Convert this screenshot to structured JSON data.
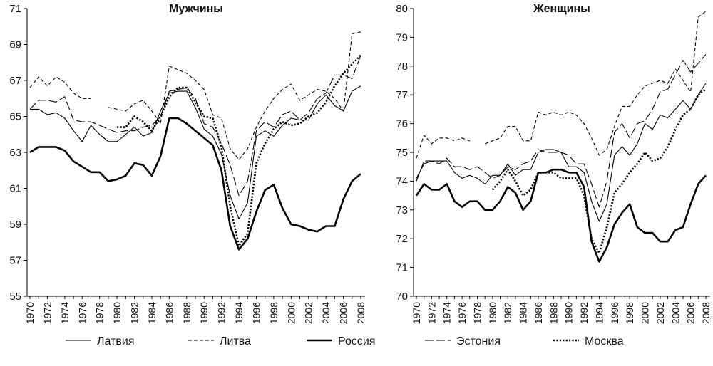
{
  "legend": [
    {
      "name": "Латвия",
      "style": "latvia"
    },
    {
      "name": "Литва",
      "style": "lithuania"
    },
    {
      "name": "Россия",
      "style": "russia"
    },
    {
      "name": "Эстония",
      "style": "estonia"
    },
    {
      "name": "Москва",
      "style": "moscow"
    }
  ],
  "chart_data": [
    {
      "type": "line",
      "title": "Мужчины",
      "xlabel": "",
      "ylabel": "",
      "ylim": [
        55,
        71
      ],
      "yticks": [
        55,
        57,
        59,
        61,
        63,
        65,
        67,
        69,
        71
      ],
      "xlim": [
        1970,
        2008
      ],
      "xticks": [
        1970,
        1972,
        1974,
        1976,
        1978,
        1980,
        1982,
        1984,
        1986,
        1988,
        1990,
        1992,
        1994,
        1996,
        1998,
        2000,
        2002,
        2004,
        2006,
        2008
      ],
      "grid": false,
      "series": [
        {
          "name": "Латвия",
          "style": "latvia",
          "x": [
            1970,
            1971,
            1972,
            1973,
            1974,
            1975,
            1976,
            1977,
            1978,
            1979,
            1980,
            1981,
            1982,
            1983,
            1984,
            1985,
            1986,
            1987,
            1988,
            1989,
            1990,
            1991,
            1992,
            1993,
            1994,
            1995,
            1996,
            1997,
            1998,
            1999,
            2000,
            2001,
            2002,
            2003,
            2004,
            2005,
            2006,
            2007,
            2008
          ],
          "values": [
            65.4,
            65.4,
            65.1,
            65.2,
            64.9,
            64.2,
            63.6,
            64.5,
            64.0,
            63.6,
            63.6,
            64.0,
            64.4,
            63.9,
            64.1,
            65.3,
            66.3,
            66.4,
            66.4,
            65.5,
            64.3,
            63.9,
            62.9,
            60.6,
            59.3,
            60.2,
            63.9,
            64.2,
            63.9,
            64.5,
            64.9,
            64.8,
            64.8,
            65.7,
            66.2,
            65.6,
            65.3,
            66.4,
            66.7
          ]
        },
        {
          "name": "Литва",
          "style": "lithuania",
          "x": [
            1970,
            1971,
            1972,
            1973,
            1974,
            1975,
            1976,
            1977,
            1978,
            1979,
            1980,
            1981,
            1982,
            1983,
            1984,
            1985,
            1986,
            1987,
            1988,
            1989,
            1990,
            1991,
            1992,
            1993,
            1994,
            1995,
            1996,
            1997,
            1998,
            1999,
            2000,
            2001,
            2002,
            2003,
            2004,
            2005,
            2006,
            2007,
            2008
          ],
          "values": [
            66.6,
            67.2,
            66.7,
            67.2,
            66.9,
            66.3,
            66.0,
            66.0,
            null,
            65.5,
            65.4,
            65.3,
            65.7,
            65.9,
            65.3,
            64.6,
            67.8,
            67.6,
            67.4,
            67.0,
            66.5,
            65.1,
            64.9,
            63.2,
            62.6,
            63.2,
            64.4,
            65.3,
            66.0,
            66.5,
            66.8,
            65.9,
            66.2,
            66.5,
            66.4,
            66.0,
            65.3,
            69.6,
            69.7
          ]
        },
        {
          "name": "Россия",
          "style": "russia",
          "x": [
            1970,
            1971,
            1972,
            1973,
            1974,
            1975,
            1976,
            1977,
            1978,
            1979,
            1980,
            1981,
            1982,
            1983,
            1984,
            1985,
            1986,
            1987,
            1988,
            1989,
            1990,
            1991,
            1992,
            1993,
            1994,
            1995,
            1996,
            1997,
            1998,
            1999,
            2000,
            2001,
            2002,
            2003,
            2004,
            2005,
            2006,
            2007,
            2008
          ],
          "values": [
            63.0,
            63.3,
            63.3,
            63.3,
            63.1,
            62.5,
            62.2,
            61.9,
            61.9,
            61.4,
            61.5,
            61.7,
            62.4,
            62.3,
            61.7,
            62.8,
            64.9,
            64.9,
            64.6,
            64.2,
            63.8,
            63.4,
            62.0,
            58.9,
            57.6,
            58.2,
            59.7,
            60.9,
            61.2,
            59.9,
            59.0,
            58.9,
            58.7,
            58.6,
            58.9,
            58.9,
            60.4,
            61.4,
            61.8
          ]
        },
        {
          "name": "Эстония",
          "style": "estonia",
          "x": [
            1970,
            1971,
            1972,
            1973,
            1974,
            1975,
            1976,
            1977,
            1978,
            1979,
            1980,
            1981,
            1982,
            1983,
            1984,
            1985,
            1986,
            1987,
            1988,
            1989,
            1990,
            1991,
            1992,
            1993,
            1994,
            1995,
            1996,
            1997,
            1998,
            1999,
            2000,
            2001,
            2002,
            2003,
            2004,
            2005,
            2006,
            2007,
            2008
          ],
          "values": [
            65.4,
            65.9,
            65.9,
            65.8,
            66.1,
            64.8,
            64.7,
            64.7,
            64.5,
            64.3,
            64.1,
            64.2,
            64.2,
            64.4,
            64.5,
            65.0,
            66.4,
            66.5,
            66.6,
            66.0,
            64.6,
            64.4,
            63.5,
            62.3,
            60.6,
            61.4,
            64.2,
            64.7,
            64.4,
            65.1,
            65.3,
            64.8,
            65.2,
            66.0,
            66.3,
            67.3,
            67.3,
            67.1,
            68.4
          ]
        },
        {
          "name": "Москва",
          "style": "moscow",
          "x": [
            1980,
            1981,
            1982,
            1983,
            1984,
            1985,
            1986,
            1987,
            1988,
            1989,
            1990,
            1991,
            1992,
            1993,
            1994,
            1995,
            1996,
            1997,
            1998,
            1999,
            2000,
            2001,
            2002,
            2003,
            2004,
            2005,
            2006,
            2007,
            2008
          ],
          "values": [
            64.4,
            64.4,
            65.0,
            64.7,
            64.2,
            65.0,
            66.1,
            66.6,
            66.6,
            65.8,
            65.0,
            64.9,
            63.3,
            60.0,
            57.8,
            58.5,
            62.4,
            63.5,
            64.3,
            64.7,
            64.5,
            64.6,
            65.0,
            65.2,
            65.8,
            66.7,
            67.4,
            67.9,
            68.4
          ]
        }
      ]
    },
    {
      "type": "line",
      "title": "Женщины",
      "xlabel": "",
      "ylabel": "",
      "ylim": [
        70,
        80
      ],
      "yticks": [
        70,
        71,
        72,
        73,
        74,
        75,
        76,
        77,
        78,
        79,
        80
      ],
      "xlim": [
        1970,
        2008
      ],
      "xticks": [
        1970,
        1972,
        1974,
        1976,
        1978,
        1980,
        1982,
        1984,
        1986,
        1988,
        1990,
        1992,
        1994,
        1996,
        1998,
        2000,
        2002,
        2004,
        2006,
        2008
      ],
      "grid": false,
      "series": [
        {
          "name": "Латвия",
          "style": "latvia",
          "x": [
            1970,
            1971,
            1972,
            1973,
            1974,
            1975,
            1976,
            1977,
            1978,
            1979,
            1980,
            1981,
            1982,
            1983,
            1984,
            1985,
            1986,
            1987,
            1988,
            1989,
            1990,
            1991,
            1992,
            1993,
            1994,
            1995,
            1996,
            1997,
            1998,
            1999,
            2000,
            2001,
            2002,
            2003,
            2004,
            2005,
            2006,
            2007,
            2008
          ],
          "values": [
            74.1,
            74.6,
            74.7,
            74.7,
            74.7,
            74.3,
            74.1,
            74.2,
            74.1,
            73.9,
            74.2,
            74.2,
            74.6,
            74.2,
            74.4,
            74.4,
            75.0,
            75.1,
            75.1,
            75.0,
            74.5,
            74.5,
            74.3,
            73.3,
            72.6,
            73.2,
            74.9,
            75.2,
            74.9,
            75.3,
            76.0,
            75.8,
            76.3,
            76.2,
            76.5,
            76.8,
            76.5,
            77.0,
            77.4
          ]
        },
        {
          "name": "Литва",
          "style": "lithuania",
          "x": [
            1970,
            1971,
            1972,
            1973,
            1974,
            1975,
            1976,
            1977,
            1978,
            1979,
            1980,
            1981,
            1982,
            1983,
            1984,
            1985,
            1986,
            1987,
            1988,
            1989,
            1990,
            1991,
            1992,
            1993,
            1994,
            1995,
            1996,
            1997,
            1998,
            1999,
            2000,
            2001,
            2002,
            2003,
            2004,
            2005,
            2006,
            2007,
            2008
          ],
          "values": [
            74.8,
            75.6,
            75.3,
            75.5,
            75.5,
            75.4,
            75.5,
            75.4,
            null,
            75.3,
            75.4,
            75.5,
            75.9,
            75.9,
            75.4,
            75.4,
            76.4,
            76.3,
            76.4,
            76.3,
            76.4,
            76.3,
            76.0,
            75.5,
            74.9,
            75.1,
            75.9,
            76.6,
            76.6,
            77.0,
            77.3,
            77.4,
            77.5,
            77.4,
            77.9,
            77.5,
            77.1,
            79.7,
            79.9
          ]
        },
        {
          "name": "Россия",
          "style": "russia",
          "x": [
            1970,
            1971,
            1972,
            1973,
            1974,
            1975,
            1976,
            1977,
            1978,
            1979,
            1980,
            1981,
            1982,
            1983,
            1984,
            1985,
            1986,
            1987,
            1988,
            1989,
            1990,
            1991,
            1992,
            1993,
            1994,
            1995,
            1996,
            1997,
            1998,
            1999,
            2000,
            2001,
            2002,
            2003,
            2004,
            2005,
            2006,
            2007,
            2008
          ],
          "values": [
            73.5,
            73.9,
            73.7,
            73.7,
            73.9,
            73.3,
            73.1,
            73.3,
            73.3,
            73.0,
            73.0,
            73.3,
            73.8,
            73.6,
            73.0,
            73.3,
            74.3,
            74.3,
            74.4,
            74.4,
            74.3,
            74.3,
            73.8,
            71.9,
            71.2,
            71.7,
            72.5,
            72.9,
            73.2,
            72.4,
            72.2,
            72.2,
            71.9,
            71.9,
            72.3,
            72.4,
            73.2,
            73.9,
            74.2
          ]
        },
        {
          "name": "Эстония",
          "style": "estonia",
          "x": [
            1970,
            1971,
            1972,
            1973,
            1974,
            1975,
            1976,
            1977,
            1978,
            1979,
            1980,
            1981,
            1982,
            1983,
            1984,
            1985,
            1986,
            1987,
            1988,
            1989,
            1990,
            1991,
            1992,
            1993,
            1994,
            1995,
            1996,
            1997,
            1998,
            1999,
            2000,
            2001,
            2002,
            2003,
            2004,
            2005,
            2006,
            2007,
            2008
          ],
          "values": [
            74.0,
            74.7,
            74.7,
            74.6,
            74.8,
            74.5,
            74.5,
            74.4,
            74.5,
            74.3,
            74.1,
            74.2,
            74.5,
            74.4,
            74.6,
            74.7,
            75.1,
            75.0,
            75.0,
            75.0,
            74.9,
            74.6,
            74.6,
            73.9,
            73.1,
            74.0,
            75.7,
            76.0,
            75.5,
            76.0,
            76.1,
            76.5,
            77.1,
            77.2,
            77.7,
            78.2,
            77.8,
            78.1,
            78.4
          ]
        },
        {
          "name": "Москва",
          "style": "moscow",
          "x": [
            1980,
            1981,
            1982,
            1983,
            1984,
            1985,
            1986,
            1987,
            1988,
            1989,
            1990,
            1991,
            1992,
            1993,
            1994,
            1995,
            1996,
            1997,
            1998,
            1999,
            2000,
            2001,
            2002,
            2003,
            2004,
            2005,
            2006,
            2007,
            2008
          ],
          "values": [
            73.7,
            74.0,
            74.4,
            74.0,
            73.5,
            73.7,
            74.3,
            74.3,
            74.3,
            74.1,
            74.1,
            74.1,
            73.5,
            72.0,
            71.5,
            72.4,
            73.6,
            73.9,
            74.3,
            74.6,
            75.0,
            74.7,
            74.8,
            75.2,
            75.8,
            76.3,
            76.5,
            77.0,
            77.2
          ]
        }
      ]
    }
  ]
}
